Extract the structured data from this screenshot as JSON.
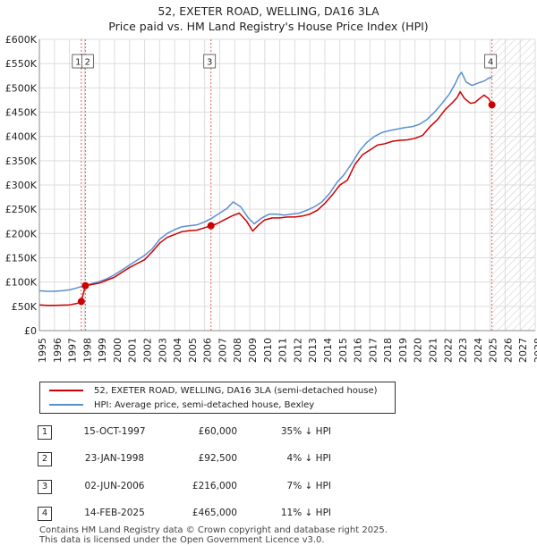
{
  "chart_data": {
    "type": "line",
    "title": "52, EXETER ROAD, WELLING, DA16 3LA",
    "subtitle": "Price paid vs. HM Land Registry's House Price Index (HPI)",
    "xlim": [
      1995,
      2028
    ],
    "ylim": [
      0,
      600000
    ],
    "x_ticks": [
      1995,
      1996,
      1997,
      1998,
      1999,
      2000,
      2001,
      2002,
      2003,
      2004,
      2005,
      2006,
      2007,
      2008,
      2009,
      2010,
      2011,
      2012,
      2013,
      2014,
      2015,
      2016,
      2017,
      2018,
      2019,
      2020,
      2021,
      2022,
      2023,
      2024,
      2025,
      2026,
      2027,
      2028
    ],
    "y_ticks": [
      0,
      50000,
      100000,
      150000,
      200000,
      250000,
      300000,
      350000,
      400000,
      450000,
      500000,
      550000,
      600000
    ],
    "y_tick_labels": [
      "£0",
      "£50K",
      "£100K",
      "£150K",
      "£200K",
      "£250K",
      "£300K",
      "£350K",
      "£400K",
      "£450K",
      "£500K",
      "£550K",
      "£600K"
    ],
    "grid": true,
    "future_hatch_start": 2025.12,
    "series": [
      {
        "name": "52, EXETER ROAD, WELLING, DA16 3LA (semi-detached house)",
        "color": "#cc0000",
        "x": [
          1995.0,
          1995.5,
          1996.0,
          1996.5,
          1997.0,
          1997.5,
          1997.79,
          1998.06,
          1998.5,
          1999.0,
          1999.5,
          2000.0,
          2000.5,
          2001.0,
          2001.5,
          2002.0,
          2002.5,
          2003.0,
          2003.5,
          2004.0,
          2004.5,
          2005.0,
          2005.5,
          2006.0,
          2006.42,
          2006.8,
          2007.3,
          2007.8,
          2008.3,
          2008.8,
          2009.2,
          2009.6,
          2010.0,
          2010.5,
          2011.0,
          2011.5,
          2012.0,
          2012.5,
          2013.0,
          2013.5,
          2014.0,
          2014.5,
          2015.0,
          2015.5,
          2016.0,
          2016.5,
          2017.0,
          2017.5,
          2018.0,
          2018.5,
          2019.0,
          2019.5,
          2020.0,
          2020.5,
          2021.0,
          2021.5,
          2022.0,
          2022.5,
          2022.8,
          2023.0,
          2023.3,
          2023.7,
          2024.0,
          2024.3,
          2024.6,
          2024.9,
          2025.12
        ],
        "y": [
          53000,
          52000,
          52000,
          52500,
          53000,
          56000,
          60000,
          92500,
          95000,
          98000,
          104000,
          110000,
          120000,
          130000,
          138000,
          146000,
          162000,
          180000,
          192000,
          198000,
          204000,
          206000,
          207000,
          212000,
          216000,
          220000,
          228000,
          236000,
          242000,
          225000,
          205000,
          218000,
          228000,
          232000,
          232000,
          234000,
          234000,
          236000,
          240000,
          248000,
          262000,
          280000,
          300000,
          310000,
          342000,
          362000,
          372000,
          382000,
          385000,
          390000,
          392000,
          393000,
          396000,
          402000,
          420000,
          435000,
          455000,
          470000,
          480000,
          492000,
          478000,
          468000,
          470000,
          478000,
          485000,
          478000,
          465000
        ]
      },
      {
        "name": "HPI: Average price, semi-detached house, Bexley",
        "color": "#5a8fcf",
        "x": [
          1995.0,
          1995.5,
          1996.0,
          1996.5,
          1997.0,
          1997.5,
          1998.0,
          1998.5,
          1999.0,
          1999.5,
          2000.0,
          2000.5,
          2001.0,
          2001.5,
          2002.0,
          2002.5,
          2003.0,
          2003.5,
          2004.0,
          2004.5,
          2005.0,
          2005.5,
          2006.0,
          2006.5,
          2007.0,
          2007.5,
          2007.9,
          2008.4,
          2008.9,
          2009.3,
          2009.8,
          2010.3,
          2010.8,
          2011.3,
          2011.8,
          2012.3,
          2012.8,
          2013.3,
          2013.8,
          2014.3,
          2014.8,
          2015.3,
          2015.8,
          2016.3,
          2016.8,
          2017.3,
          2017.8,
          2018.3,
          2018.8,
          2019.3,
          2019.8,
          2020.3,
          2020.8,
          2021.3,
          2021.8,
          2022.3,
          2022.7,
          2022.9,
          2023.1,
          2023.4,
          2023.8,
          2024.2,
          2024.6,
          2024.9,
          2025.12
        ],
        "y": [
          82000,
          81000,
          81000,
          82000,
          84000,
          88000,
          93000,
          97000,
          101000,
          107000,
          115000,
          125000,
          135000,
          145000,
          155000,
          168000,
          188000,
          200000,
          208000,
          214000,
          216000,
          218000,
          224000,
          232000,
          242000,
          252000,
          265000,
          255000,
          232000,
          220000,
          232000,
          240000,
          240000,
          238000,
          240000,
          242000,
          248000,
          255000,
          265000,
          282000,
          305000,
          322000,
          345000,
          370000,
          388000,
          400000,
          408000,
          412000,
          415000,
          418000,
          420000,
          425000,
          435000,
          450000,
          468000,
          488000,
          510000,
          524000,
          532000,
          512000,
          505000,
          510000,
          514000,
          520000,
          522000
        ]
      }
    ],
    "sales": [
      {
        "label": "1",
        "x": 1997.79,
        "y": 60000
      },
      {
        "label": "2",
        "x": 1998.06,
        "y": 92500
      },
      {
        "label": "3",
        "x": 2006.42,
        "y": 216000
      },
      {
        "label": "4",
        "x": 2025.12,
        "y": 465000
      }
    ]
  },
  "legend": {
    "property": "52, EXETER ROAD, WELLING, DA16 3LA (semi-detached house)",
    "hpi": "HPI: Average price, semi-detached house, Bexley",
    "property_color": "#cc0000",
    "hpi_color": "#5a8fcf"
  },
  "transactions": [
    {
      "num": "1",
      "date": "15-OCT-1997",
      "price": "£60,000",
      "hpi": "35% ↓ HPI"
    },
    {
      "num": "2",
      "date": "23-JAN-1998",
      "price": "£92,500",
      "hpi": "4% ↓ HPI"
    },
    {
      "num": "3",
      "date": "02-JUN-2006",
      "price": "£216,000",
      "hpi": "7% ↓ HPI"
    },
    {
      "num": "4",
      "date": "14-FEB-2025",
      "price": "£465,000",
      "hpi": "11% ↓ HPI"
    }
  ],
  "footer": {
    "line1": "Contains HM Land Registry data © Crown copyright and database right 2025.",
    "line2": "This data is licensed under the Open Government Licence v3.0."
  }
}
